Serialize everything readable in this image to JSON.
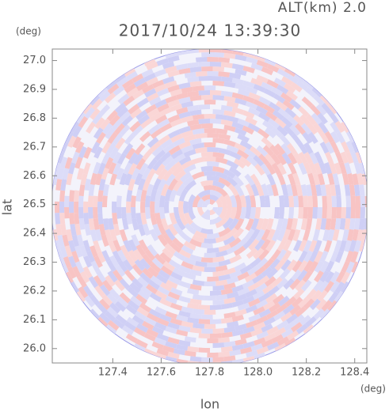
{
  "chart_data": {
    "type": "radar-ppi",
    "title": "2017/10/24 13:39:30",
    "subtitle": "ALT(km) 2.0",
    "x_label": "lon",
    "y_label": "lat",
    "x_unit": "(deg)",
    "y_unit": "(deg)",
    "xlim": [
      127.15,
      128.45
    ],
    "ylim": [
      25.95,
      27.04
    ],
    "xticks": [
      127.4,
      127.6,
      127.8,
      {
        "value": 128,
        "label": "128.0"
      },
      128.2,
      128.4
    ],
    "yticks": [
      {
        "value": 26,
        "label": "26.0"
      },
      26.1,
      26.2,
      26.3,
      26.4,
      26.5,
      26.6,
      26.7,
      26.8,
      26.9,
      {
        "value": 27,
        "label": "27.0"
      }
    ]
  }
}
